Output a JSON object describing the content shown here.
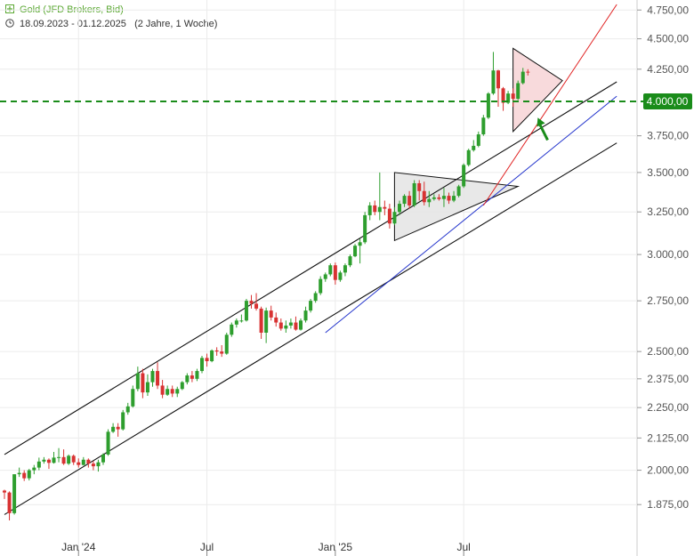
{
  "header": {
    "title": "Gold (JFD Brokers, Bid)",
    "range": "18.09.2023 - 01.12.2025",
    "duration": "(2 Jahre, 1 Woche)"
  },
  "icons": {
    "title": "plus-box-icon",
    "range": "clock-icon"
  },
  "colors": {
    "up": "#2e9e2e",
    "down": "#d83232",
    "level_line": "#1a8c1a",
    "badge": "#1a8c1a",
    "channel": "#111111",
    "blue_trend": "#2233cc",
    "red_trend": "#e02020",
    "arrow": "#1a8c1a"
  },
  "chart_data": {
    "type": "candlestick",
    "title": "Gold (JFD Brokers, Bid)",
    "y_scale": "log",
    "ylim": [
      1820,
      4800
    ],
    "y_ticks": [
      {
        "value": 4750,
        "label": "4.750,00"
      },
      {
        "value": 4500,
        "label": "4.500,00"
      },
      {
        "value": 4250,
        "label": "4.250,00"
      },
      {
        "value": 3750,
        "label": "3.750,00"
      },
      {
        "value": 3500,
        "label": "3.500,00"
      },
      {
        "value": 3250,
        "label": "3.250,00"
      },
      {
        "value": 3000,
        "label": "3.000,00"
      },
      {
        "value": 2750,
        "label": "2.750,00"
      },
      {
        "value": 2500,
        "label": "2.500,00"
      },
      {
        "value": 2375,
        "label": "2.375,00"
      },
      {
        "value": 2250,
        "label": "2.250,00"
      },
      {
        "value": 2125,
        "label": "2.125,00"
      },
      {
        "value": 2000,
        "label": "2.000,00"
      },
      {
        "value": 1875,
        "label": "1.875,00"
      }
    ],
    "x_ticks": [
      {
        "week": 15,
        "label": "Jan '24"
      },
      {
        "week": 41,
        "label": "Jul"
      },
      {
        "week": 67,
        "label": "Jan '25"
      },
      {
        "week": 93,
        "label": "Jul"
      }
    ],
    "horizontal_level": {
      "value": 4000,
      "label": "4.000,00"
    },
    "candles": [
      [
        1925,
        1928,
        1895,
        1918
      ],
      [
        1918,
        1922,
        1820,
        1845
      ],
      [
        1845,
        1985,
        1840,
        1985
      ],
      [
        1985,
        2010,
        1975,
        1990
      ],
      [
        1990,
        2000,
        1960,
        1970
      ],
      [
        1970,
        2005,
        1962,
        2000
      ],
      [
        2000,
        2020,
        1985,
        2010
      ],
      [
        2010,
        2048,
        2000,
        2033
      ],
      [
        2033,
        2050,
        2025,
        2040
      ],
      [
        2040,
        2045,
        2005,
        2028
      ],
      [
        2028,
        2070,
        2025,
        2048
      ],
      [
        2048,
        2085,
        2030,
        2050
      ],
      [
        2050,
        2080,
        2020,
        2025
      ],
      [
        2025,
        2060,
        2020,
        2055
      ],
      [
        2055,
        2060,
        2020,
        2030
      ],
      [
        2030,
        2045,
        2010,
        2020
      ],
      [
        2020,
        2050,
        2018,
        2040
      ],
      [
        2040,
        2045,
        2010,
        2025
      ],
      [
        2025,
        2035,
        2000,
        2015
      ],
      [
        2015,
        2040,
        1995,
        2030
      ],
      [
        2030,
        2065,
        2020,
        2060
      ],
      [
        2060,
        2160,
        2055,
        2150
      ],
      [
        2150,
        2185,
        2145,
        2170
      ],
      [
        2170,
        2185,
        2130,
        2160
      ],
      [
        2160,
        2240,
        2155,
        2230
      ],
      [
        2230,
        2270,
        2220,
        2255
      ],
      [
        2255,
        2345,
        2250,
        2330
      ],
      [
        2330,
        2430,
        2320,
        2400
      ],
      [
        2400,
        2420,
        2290,
        2315
      ],
      [
        2315,
        2395,
        2300,
        2360
      ],
      [
        2360,
        2420,
        2340,
        2410
      ],
      [
        2410,
        2450,
        2330,
        2345
      ],
      [
        2345,
        2370,
        2290,
        2305
      ],
      [
        2305,
        2345,
        2300,
        2330
      ],
      [
        2330,
        2345,
        2295,
        2310
      ],
      [
        2310,
        2340,
        2295,
        2330
      ],
      [
        2330,
        2365,
        2325,
        2360
      ],
      [
        2360,
        2400,
        2350,
        2390
      ],
      [
        2390,
        2410,
        2360,
        2375
      ],
      [
        2375,
        2420,
        2365,
        2410
      ],
      [
        2410,
        2480,
        2400,
        2470
      ],
      [
        2470,
        2490,
        2430,
        2455
      ],
      [
        2455,
        2510,
        2450,
        2505
      ],
      [
        2505,
        2520,
        2480,
        2500
      ],
      [
        2500,
        2530,
        2475,
        2490
      ],
      [
        2490,
        2590,
        2485,
        2580
      ],
      [
        2580,
        2640,
        2570,
        2630
      ],
      [
        2630,
        2660,
        2615,
        2650
      ],
      [
        2650,
        2680,
        2640,
        2650
      ],
      [
        2650,
        2760,
        2645,
        2750
      ],
      [
        2750,
        2780,
        2710,
        2735
      ],
      [
        2735,
        2790,
        2700,
        2710
      ],
      [
        2710,
        2720,
        2560,
        2590
      ],
      [
        2590,
        2715,
        2540,
        2700
      ],
      [
        2700,
        2725,
        2650,
        2665
      ],
      [
        2665,
        2690,
        2620,
        2640
      ],
      [
        2640,
        2660,
        2600,
        2610
      ],
      [
        2610,
        2650,
        2590,
        2625
      ],
      [
        2625,
        2660,
        2610,
        2640
      ],
      [
        2640,
        2670,
        2600,
        2605
      ],
      [
        2605,
        2660,
        2600,
        2650
      ],
      [
        2650,
        2720,
        2640,
        2700
      ],
      [
        2700,
        2760,
        2690,
        2750
      ],
      [
        2750,
        2800,
        2740,
        2790
      ],
      [
        2790,
        2880,
        2780,
        2865
      ],
      [
        2865,
        2900,
        2850,
        2890
      ],
      [
        2890,
        2950,
        2880,
        2940
      ],
      [
        2940,
        2955,
        2835,
        2860
      ],
      [
        2860,
        2910,
        2850,
        2900
      ],
      [
        2900,
        2950,
        2880,
        2940
      ],
      [
        2940,
        3000,
        2930,
        2990
      ],
      [
        2990,
        3060,
        2985,
        3050
      ],
      [
        3050,
        3090,
        2950,
        3070
      ],
      [
        3070,
        3250,
        3060,
        3230
      ],
      [
        3230,
        3310,
        3200,
        3290
      ],
      [
        3290,
        3320,
        3230,
        3250
      ],
      [
        3250,
        3500,
        3200,
        3280
      ],
      [
        3280,
        3320,
        3230,
        3270
      ],
      [
        3270,
        3300,
        3150,
        3180
      ],
      [
        3180,
        3280,
        3170,
        3250
      ],
      [
        3250,
        3320,
        3230,
        3300
      ],
      [
        3300,
        3360,
        3280,
        3350
      ],
      [
        3350,
        3380,
        3270,
        3290
      ],
      [
        3290,
        3450,
        3280,
        3430
      ],
      [
        3430,
        3450,
        3320,
        3380
      ],
      [
        3380,
        3440,
        3290,
        3310
      ],
      [
        3310,
        3380,
        3280,
        3330
      ],
      [
        3330,
        3360,
        3320,
        3340
      ],
      [
        3340,
        3360,
        3320,
        3330
      ],
      [
        3330,
        3400,
        3280,
        3350
      ],
      [
        3350,
        3370,
        3300,
        3320
      ],
      [
        3320,
        3380,
        3310,
        3350
      ],
      [
        3350,
        3420,
        3340,
        3410
      ],
      [
        3410,
        3560,
        3400,
        3550
      ],
      [
        3550,
        3660,
        3540,
        3650
      ],
      [
        3650,
        3720,
        3640,
        3680
      ],
      [
        3680,
        3780,
        3670,
        3760
      ],
      [
        3760,
        3900,
        3750,
        3880
      ],
      [
        3880,
        4070,
        3870,
        4060
      ],
      [
        4060,
        4390,
        4050,
        4240
      ],
      [
        4240,
        4245,
        3960,
        4100
      ],
      [
        4100,
        4110,
        3930,
        3990
      ],
      [
        3990,
        4080,
        3980,
        4060
      ],
      [
        4060,
        4100,
        3960,
        4020
      ],
      [
        4020,
        4160,
        4010,
        4140
      ],
      [
        4140,
        4260,
        4130,
        4230
      ],
      [
        4230,
        4250,
        4200,
        4225
      ]
    ],
    "channel_upper": [
      [
        0,
        2060
      ],
      [
        124,
        4150
      ]
    ],
    "channel_lower": [
      [
        0,
        1840
      ],
      [
        124,
        3700
      ]
    ],
    "blue_trend": [
      [
        65,
        2590
      ],
      [
        124,
        4040
      ]
    ],
    "red_trend": [
      [
        97,
        3290
      ],
      [
        124,
        4800
      ]
    ],
    "triangles": [
      {
        "points": [
          [
            79,
            3500
          ],
          [
            79,
            3080
          ],
          [
            104,
            3410
          ]
        ],
        "fill": "#e4e4e4"
      },
      {
        "points": [
          [
            103,
            4420
          ],
          [
            103,
            3780
          ],
          [
            113,
            4160
          ]
        ],
        "fill": "#f7d3d6"
      }
    ],
    "arrow": {
      "from": [
        110,
        3720
      ],
      "to": [
        108,
        3880
      ]
    }
  }
}
